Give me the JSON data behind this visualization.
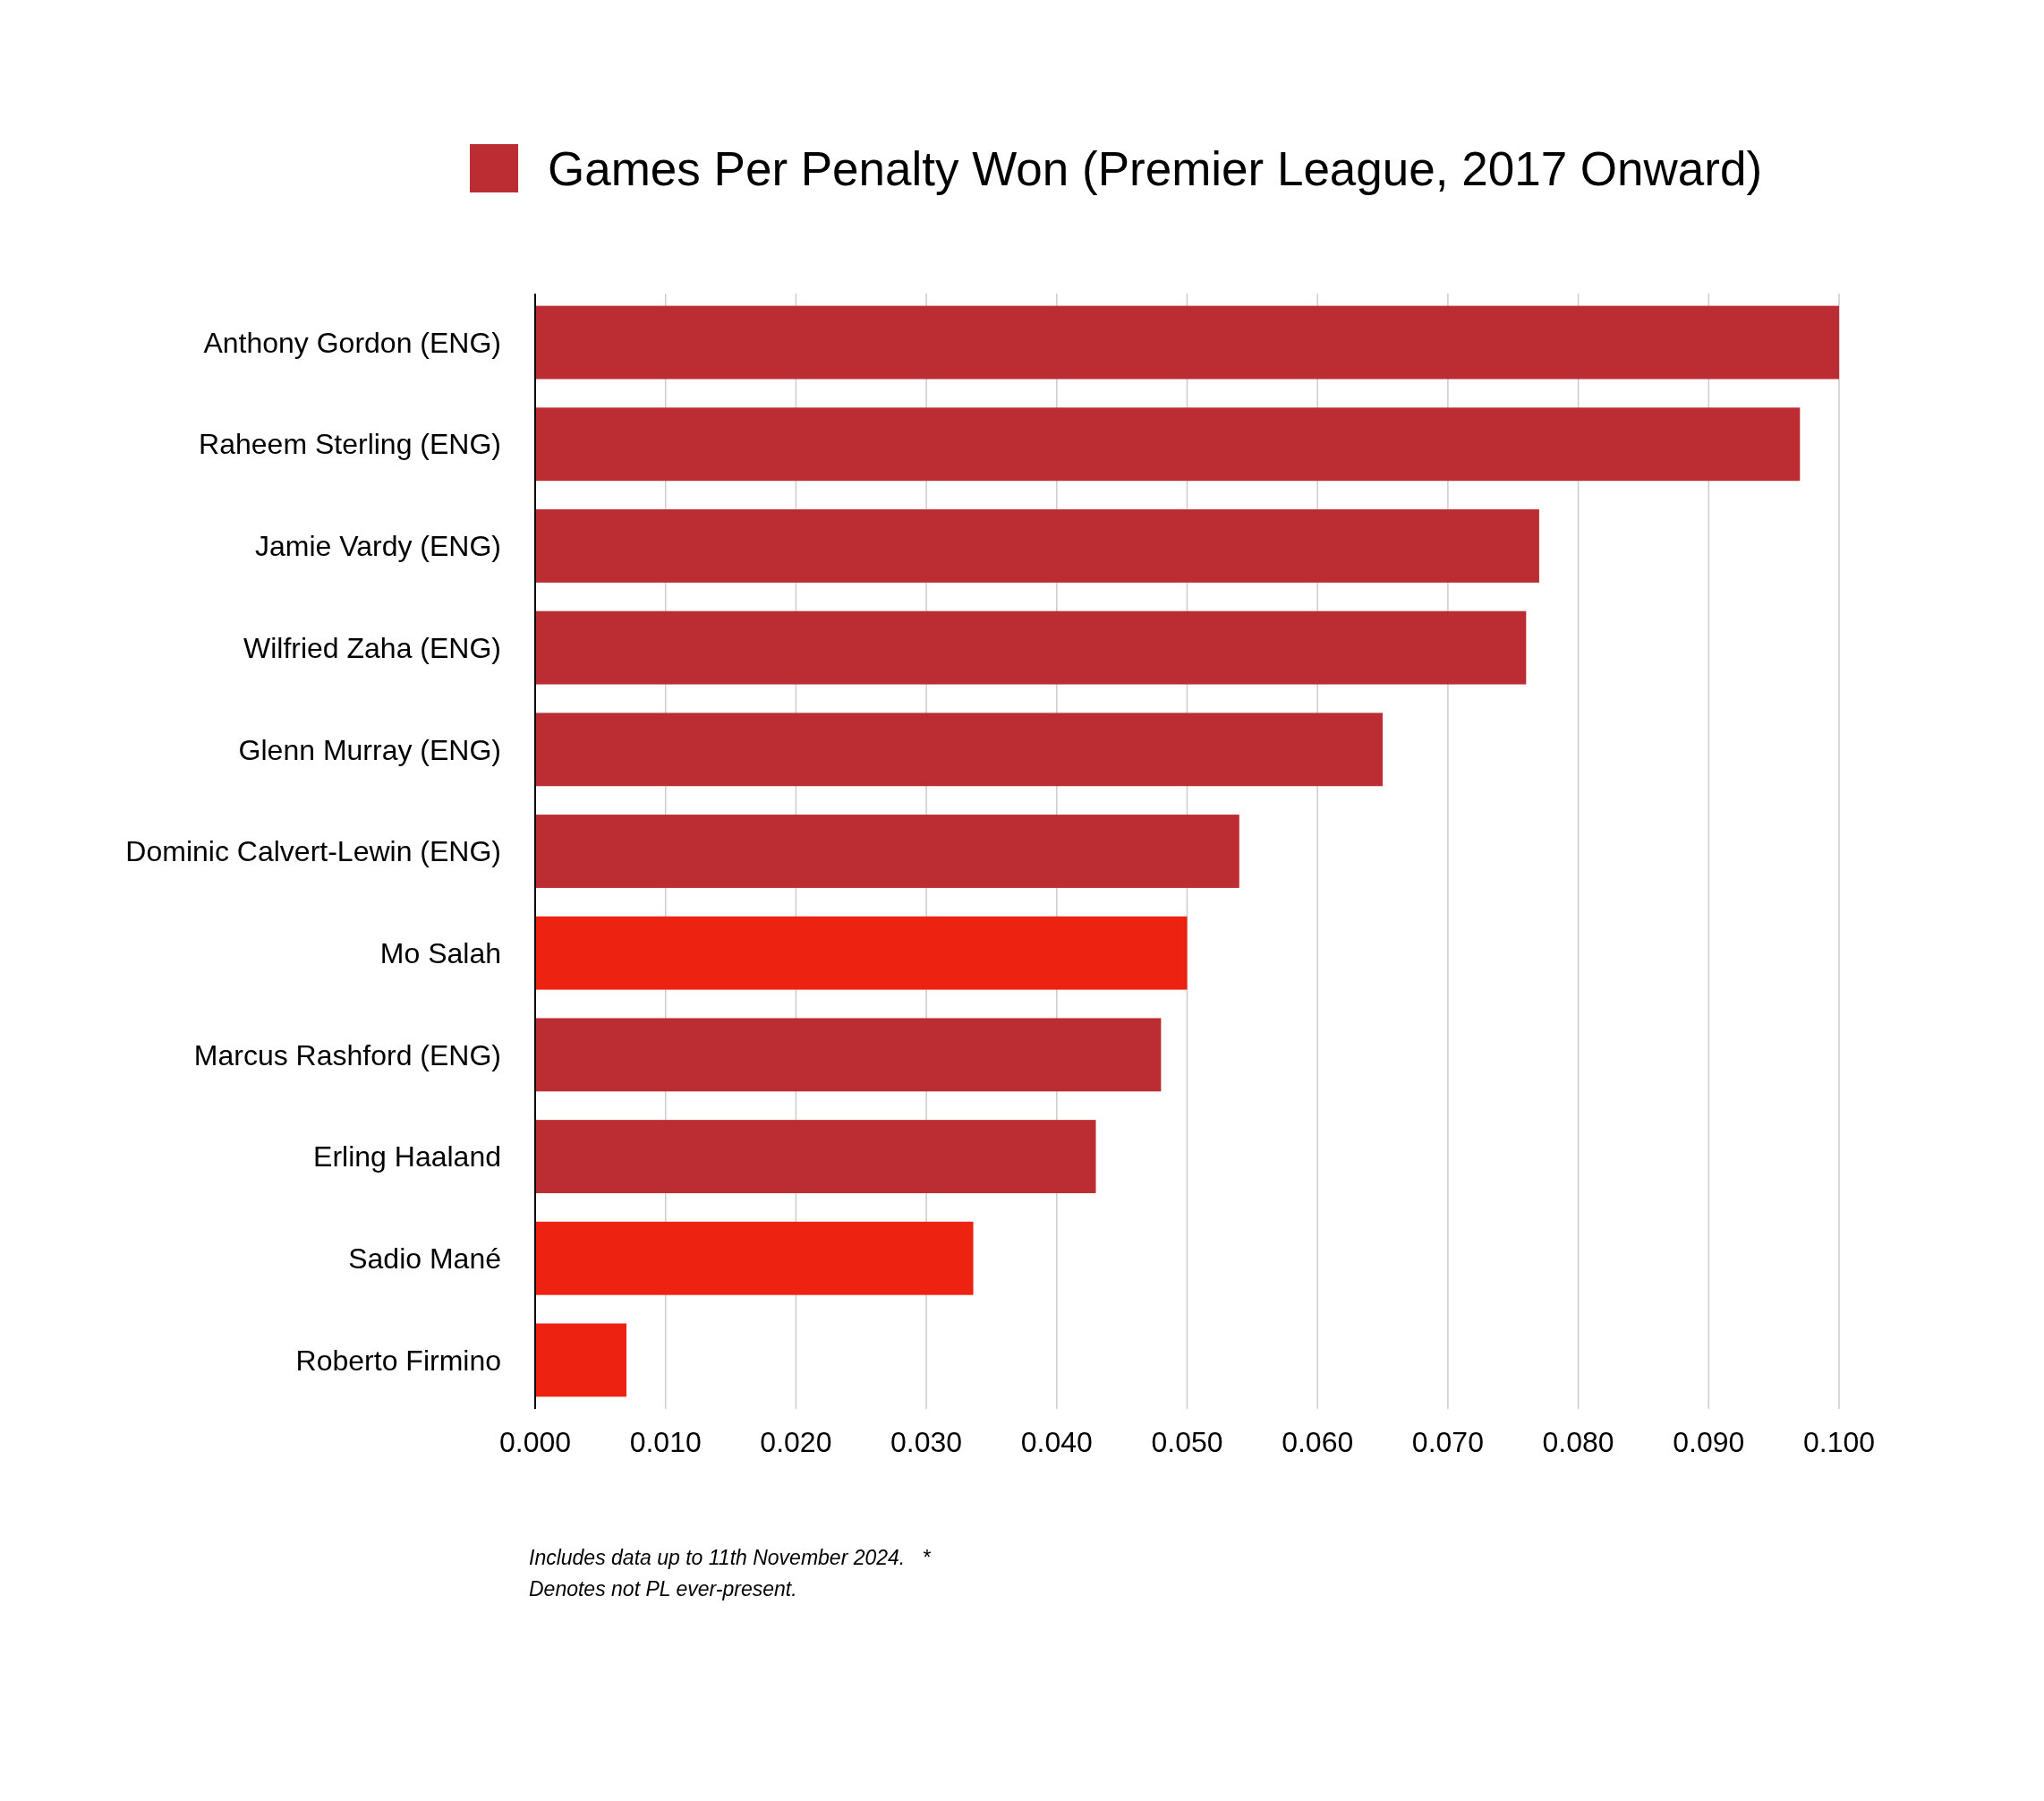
{
  "chart_data": {
    "type": "bar",
    "orientation": "horizontal",
    "categories": [
      "Anthony Gordon (ENG)",
      "Raheem Sterling (ENG)",
      "Jamie Vardy (ENG)",
      "Wilfried Zaha (ENG)",
      "Glenn Murray (ENG)",
      "Dominic Calvert-Lewin (ENG)",
      "Mo Salah",
      "Marcus Rashford (ENG)",
      "Erling Haaland",
      "Sadio Mané",
      "Roberto Firmino"
    ],
    "series": [
      {
        "name": "Games Per Penalty Won (Premier League, 2017 Onward)",
        "color": "#bb2d32",
        "colors": [
          "#bb2d32",
          "#bb2d32",
          "#bb2d32",
          "#bb2d32",
          "#bb2d32",
          "#bb2d32",
          "#ee2211",
          "#bb2d32",
          "#bb2d32",
          "#ee2211",
          "#ee2211"
        ],
        "values": [
          0.1,
          0.097,
          0.077,
          0.076,
          0.065,
          0.054,
          0.05,
          0.048,
          0.043,
          0.0336,
          0.007
        ]
      }
    ],
    "xlim": [
      0,
      0.1
    ],
    "xticks": [
      {
        "value": 0,
        "label": "0.000"
      },
      {
        "value": 0.01,
        "label": "0.010"
      },
      {
        "value": 0.02,
        "label": "0.020"
      },
      {
        "value": 0.03,
        "label": "0.030"
      },
      {
        "value": 0.04,
        "label": "0.040"
      },
      {
        "value": 0.05,
        "label": "0.050"
      },
      {
        "value": 0.06,
        "label": "0.060"
      },
      {
        "value": 0.07,
        "label": "0.070"
      },
      {
        "value": 0.08,
        "label": "0.080"
      },
      {
        "value": 0.09,
        "label": "0.090"
      },
      {
        "value": 0.1,
        "label": "0.100"
      }
    ],
    "grid": "x",
    "legend": "top",
    "annotations": [
      "Includes data up to 11th November 2024.   *",
      "Denotes not PL ever-present."
    ]
  }
}
